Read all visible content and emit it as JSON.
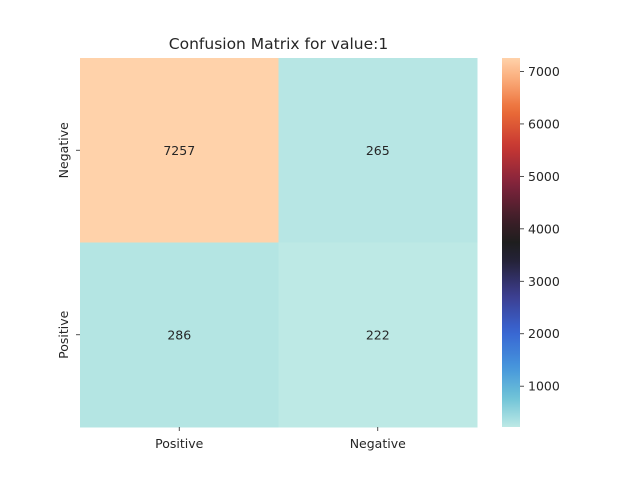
{
  "chart_data": {
    "type": "heatmap",
    "title": "Confusion Matrix for value:1",
    "x_categories": [
      "Positive",
      "Negative"
    ],
    "y_categories": [
      "Negative",
      "Positive"
    ],
    "values": [
      [
        7257,
        265
      ],
      [
        286,
        222
      ]
    ],
    "colormap": "icefire",
    "colorbar": {
      "min": 222,
      "max": 7257,
      "ticks": [
        1000,
        2000,
        3000,
        4000,
        5000,
        6000,
        7000
      ]
    }
  }
}
